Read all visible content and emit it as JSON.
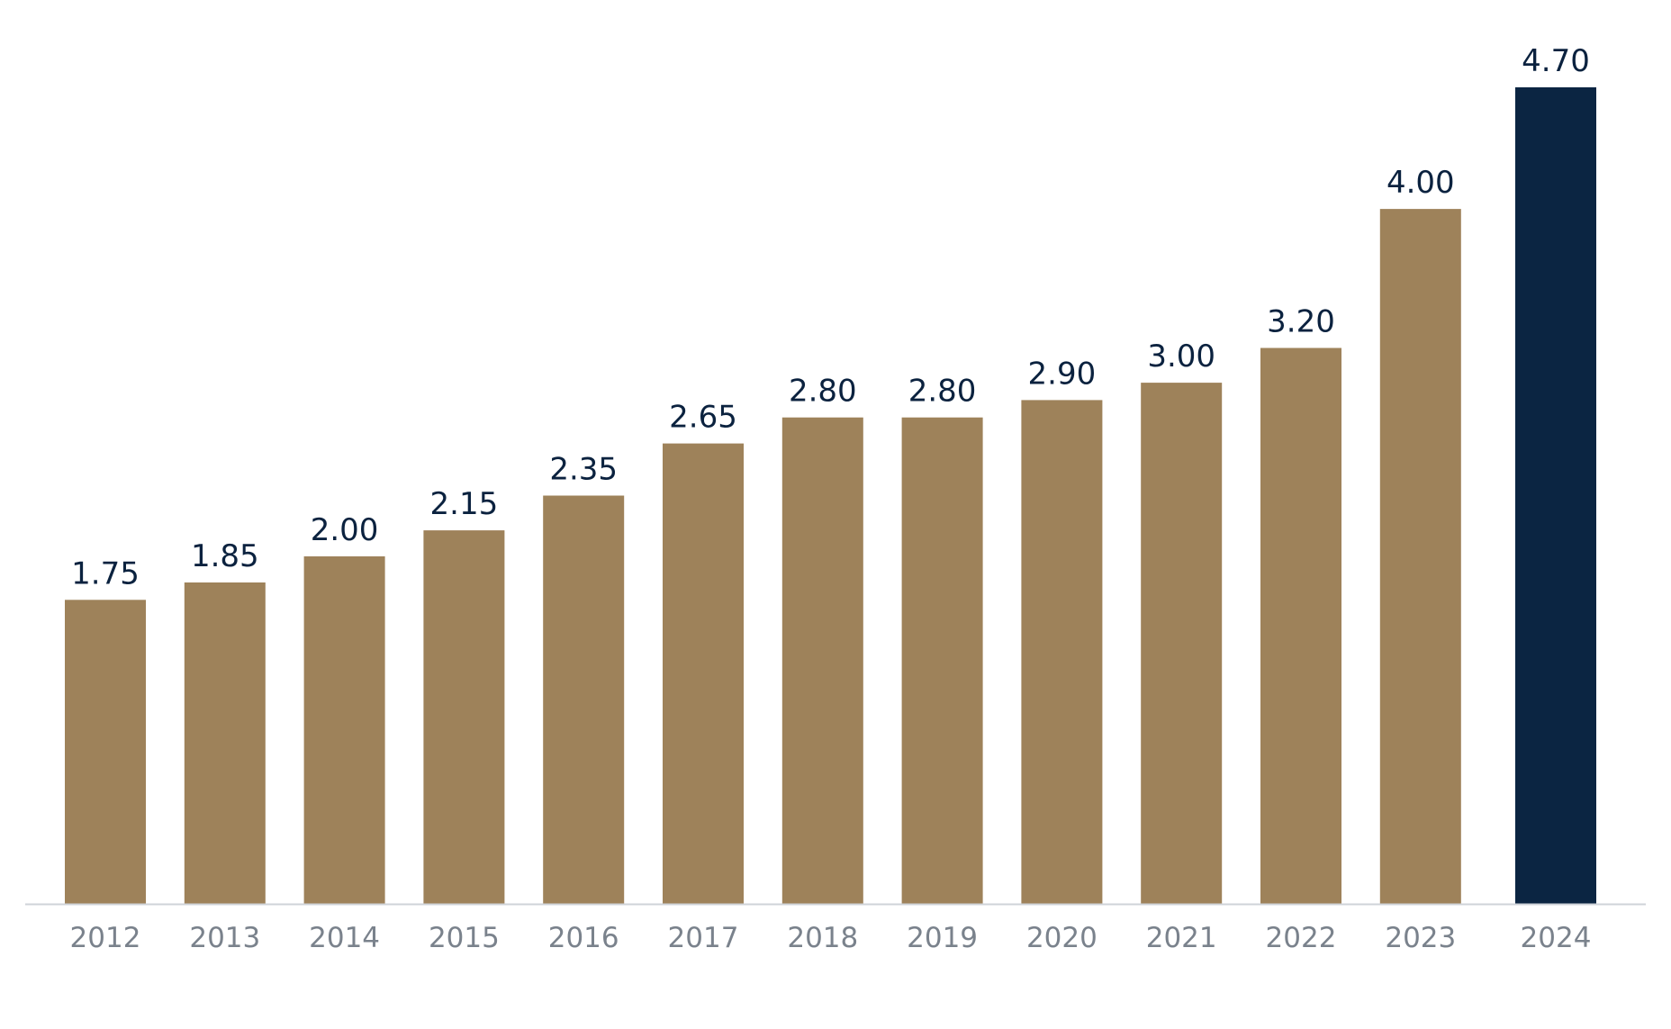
{
  "chart_data": {
    "type": "bar",
    "categories": [
      "2012",
      "2013",
      "2014",
      "2015",
      "2016",
      "2017",
      "2018",
      "2019",
      "2020",
      "2021",
      "2022",
      "2023",
      "2024"
    ],
    "values": [
      1.75,
      1.85,
      2.0,
      2.15,
      2.35,
      2.65,
      2.8,
      2.8,
      2.9,
      3.0,
      3.2,
      4.0,
      4.7
    ],
    "value_labels": [
      "1.75",
      "1.85",
      "2.00",
      "2.15",
      "2.35",
      "2.65",
      "2.80",
      "2.80",
      "2.90",
      "3.00",
      "3.20",
      "4.00",
      "4.70"
    ],
    "highlight_index": 12,
    "title": "",
    "xlabel": "",
    "ylabel": "",
    "ylim": [
      0,
      4.7
    ],
    "grid": false,
    "legend": "none",
    "colors": {
      "bar": "#9e825a",
      "highlight": "#0b2542",
      "value_text": "#0b223f",
      "tick_text": "#7a828c",
      "baseline": "#cfd3d8"
    }
  }
}
